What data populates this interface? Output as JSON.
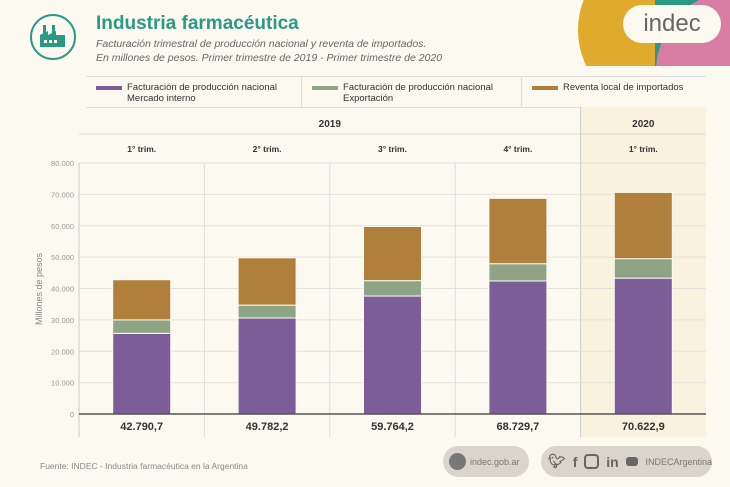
{
  "header": {
    "title": "Industria farmacéutica",
    "subtitle_1": "Facturación trimestral de producción nacional y reventa de importados.",
    "subtitle_2": "En millones de pesos. Primer trimestre de 2019 - Primer trimestre de 2020",
    "logo_icon": "factory-icon",
    "brand": "indec"
  },
  "colors": {
    "accent": "#2a9a84",
    "mercado_interno": "#7b5e98",
    "exportacion": "#8fa385",
    "reventa": "#b07f3c",
    "highlight_2020": "#f8f2df"
  },
  "chart_data": {
    "type": "bar",
    "stacked": true,
    "title": "Industria farmacéutica",
    "xlabel": "",
    "ylabel": "Millones de pesos",
    "ylim": [
      0,
      80000
    ],
    "yticks": [
      0,
      10000,
      20000,
      30000,
      40000,
      50000,
      60000,
      70000,
      80000
    ],
    "ytick_labels": [
      "0",
      "10.000",
      "20.000",
      "30.000",
      "40.000",
      "50.000",
      "60.000",
      "70.000",
      "80.000"
    ],
    "grid": true,
    "years": [
      {
        "label": "2019",
        "span": 4
      },
      {
        "label": "2020",
        "span": 1
      }
    ],
    "categories": [
      "1° trim.",
      "2° trim.",
      "3° trim.",
      "4° trim.",
      "1° trim."
    ],
    "series": [
      {
        "name": "Facturación de producción nacional Mercado interno",
        "legend_line1": "Facturación de producción nacional",
        "legend_line2": "Mercado interno",
        "values": [
          25700,
          30600,
          37600,
          42400,
          43300
        ]
      },
      {
        "name": "Facturación de producción nacional Exportación",
        "legend_line1": "Facturación de producción nacional",
        "legend_line2": "Exportación",
        "values": [
          4300,
          4100,
          4900,
          5500,
          6200
        ]
      },
      {
        "name": "Reventa local de importados",
        "legend_line1": "Reventa local de importados",
        "legend_line2": "",
        "values": [
          12790.7,
          15082.2,
          17264.2,
          20829.7,
          21122.9
        ]
      }
    ],
    "totals": [
      42790.7,
      49782.2,
      59764.2,
      68729.7,
      70622.9
    ],
    "total_labels": [
      "42.790,7",
      "49.782,2",
      "59.764,2",
      "68.729,7",
      "70.622,9"
    ],
    "legend_position": "top"
  },
  "footer": {
    "source": "Fuente: INDEC - Industria farmacéutica en la Argentina",
    "website": "indec.gob.ar",
    "social_handle": "INDECArgentina",
    "social_icons": [
      "twitter-icon",
      "facebook-icon",
      "instagram-icon",
      "linkedin-icon",
      "youtube-icon"
    ]
  }
}
